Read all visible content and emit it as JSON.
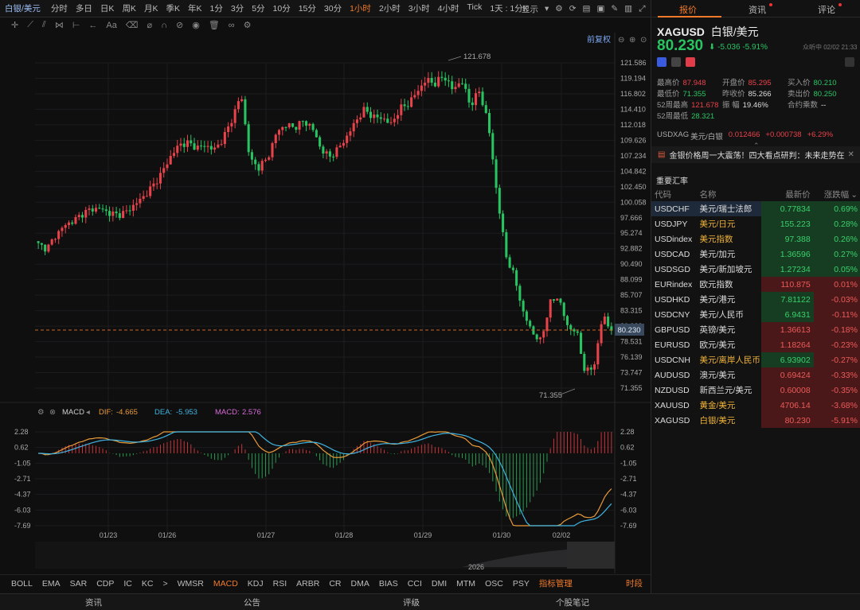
{
  "toolbar": {
    "symbol": "白银/美元",
    "timeframes": [
      "分时",
      "多日",
      "日K",
      "周K",
      "月K",
      "季K",
      "年K",
      "1分",
      "3分",
      "5分",
      "10分",
      "15分",
      "30分",
      "1小时",
      "2小时",
      "3小时",
      "4小时",
      "Tick",
      "1天 : 1分K"
    ],
    "active_timeframe": "1小时",
    "display_label": "显示"
  },
  "chart_overlay": {
    "adjust_label": "前复权",
    "high_marker": "121.678",
    "low_marker": "71.355",
    "current_price_tag": "80.230",
    "price_axis": [
      "121.586",
      "119.194",
      "116.802",
      "114.410",
      "112.018",
      "109.626",
      "107.234",
      "104.842",
      "102.450",
      "100.058",
      "97.666",
      "95.274",
      "92.882",
      "90.490",
      "88.099",
      "85.707",
      "83.315",
      "80.923",
      "78.531",
      "76.139",
      "73.747",
      "71.355"
    ],
    "macd_axis": [
      "2.28",
      "0.62",
      "-1.05",
      "-2.71",
      "-4.37",
      "-6.03",
      "-7.69"
    ],
    "dates": [
      "01/23",
      "01/26",
      "01/27",
      "01/28",
      "01/29",
      "01/30",
      "02/02"
    ],
    "year_label": "2026",
    "macd_legend": {
      "name": "MACD",
      "dif_label": "DIF:",
      "dif_value": "-4.665",
      "dea_label": "DEA:",
      "dea_value": "-5.953",
      "macd_label": "MACD:",
      "macd_value": "2.576"
    }
  },
  "indicators": [
    "BOLL",
    "EMA",
    "SAR",
    "CDP",
    "IC",
    "KC",
    ">",
    "WMSR",
    "MACD",
    "KDJ",
    "RSI",
    "ARBR",
    "CR",
    "DMA",
    "BIAS",
    "CCI",
    "DMI",
    "MTM",
    "OSC",
    "PSY",
    "指标管理",
    "时段"
  ],
  "active_indicator": "MACD",
  "bottom_tabs": [
    "资讯",
    "公告",
    "评级",
    "个股笔记"
  ],
  "panel": {
    "tabs": [
      "报价",
      "资讯",
      "评论"
    ],
    "code": "XAGUSD",
    "name": "白银/美元",
    "price": "80.230",
    "change": "-5.036",
    "change_pct": "-5.91%",
    "status": "众听中 02/02 21:33",
    "stats": [
      {
        "label": "最高价",
        "value": "87.948",
        "color": "red"
      },
      {
        "label": "开盘价",
        "value": "85.295",
        "color": "red"
      },
      {
        "label": "买入价",
        "value": "80.210",
        "color": "green"
      },
      {
        "label": "最低价",
        "value": "71.355",
        "color": "green"
      },
      {
        "label": "昨收价",
        "value": "85.266",
        "color": "plain"
      },
      {
        "label": "卖出价",
        "value": "80.250",
        "color": "green"
      },
      {
        "label": "52周最高",
        "value": "121.678",
        "color": "red"
      },
      {
        "label": "振 幅",
        "value": "19.46%",
        "color": "plain"
      },
      {
        "label": "合约乘数",
        "value": "--",
        "color": "plain"
      },
      {
        "label": "52周最低",
        "value": "28.321",
        "color": "green"
      }
    ],
    "related": {
      "code": "USDXAG",
      "name": "美元/白银",
      "price": "0.012466",
      "change": "+0.000738",
      "pct": "+6.29%"
    },
    "news": "金银价格周一大震荡！四大看点研判：未来走势在...",
    "section_title": "重要汇率",
    "table_headers": [
      "代码",
      "名称",
      "最新价",
      "涨跌幅"
    ],
    "rows": [
      {
        "code": "USDCHF",
        "name": "美元/瑞士法郎",
        "price": "0.77834",
        "pct": "0.69%",
        "dir": "up"
      },
      {
        "code": "USDJPY",
        "name": "美元/日元",
        "price": "155.223",
        "pct": "0.28%",
        "dir": "up"
      },
      {
        "code": "USDindex",
        "name": "美元指数",
        "price": "97.388",
        "pct": "0.26%",
        "dir": "up"
      },
      {
        "code": "USDCAD",
        "name": "美元/加元",
        "price": "1.36596",
        "pct": "0.27%",
        "dir": "up"
      },
      {
        "code": "USDSGD",
        "name": "美元/新加坡元",
        "price": "1.27234",
        "pct": "0.05%",
        "dir": "up"
      },
      {
        "code": "EURindex",
        "name": "欧元指数",
        "price": "110.875",
        "pct": "0.01%",
        "dir": "down"
      },
      {
        "code": "USDHKD",
        "name": "美元/港元",
        "price": "7.81122",
        "pct": "-0.03%",
        "dir": "up"
      },
      {
        "code": "USDCNY",
        "name": "美元/人民币",
        "price": "6.9431",
        "pct": "-0.11%",
        "dir": "up"
      },
      {
        "code": "GBPUSD",
        "name": "英镑/美元",
        "price": "1.36613",
        "pct": "-0.18%",
        "dir": "down"
      },
      {
        "code": "EURUSD",
        "name": "欧元/美元",
        "price": "1.18264",
        "pct": "-0.23%",
        "dir": "down"
      },
      {
        "code": "USDCNH",
        "name": "美元/离岸人民币",
        "price": "6.93902",
        "pct": "-0.27%",
        "dir": "up"
      },
      {
        "code": "AUDUSD",
        "name": "澳元/美元",
        "price": "0.69424",
        "pct": "-0.33%",
        "dir": "down"
      },
      {
        "code": "NZDUSD",
        "name": "新西兰元/美元",
        "price": "0.60008",
        "pct": "-0.35%",
        "dir": "down"
      },
      {
        "code": "XAUUSD",
        "name": "黄金/美元",
        "price": "4706.14",
        "pct": "-3.68%",
        "dir": "down"
      },
      {
        "code": "XAGUSD",
        "name": "白银/美元",
        "price": "80.230",
        "pct": "-5.91%",
        "dir": "down"
      }
    ]
  },
  "chart_data": {
    "type": "candlestick",
    "x_labels": [
      "01/23",
      "01/26",
      "01/27",
      "01/28",
      "01/29",
      "01/30",
      "02/02"
    ],
    "ylim": [
      71.355,
      121.586
    ],
    "close_path": [
      93.5,
      92.9,
      95.0,
      96.5,
      97.2,
      98.3,
      99.0,
      99.1,
      98.4,
      98.1,
      98.6,
      99.8,
      101.0,
      102.6,
      104.6,
      107.1,
      109.0,
      109.2,
      108.5,
      108.8,
      108.2,
      110.0,
      113.0,
      116.8,
      106.5,
      105.5,
      106.8,
      110.8,
      112.0,
      111.6,
      112.5,
      111.8,
      108.4,
      107.0,
      108.3,
      110.2,
      112.6,
      114.4,
      113.2,
      113.1,
      112.1,
      114.5,
      115.3,
      117.2,
      119.0,
      118.4,
      119.6,
      117.4,
      118.9,
      115.0,
      117.2,
      112.5,
      101.5,
      92.0,
      88.5,
      83.0,
      80.0,
      78.5,
      84.5,
      85.5,
      80.8,
      80.3,
      73.9,
      74.5,
      82.6,
      80.2
    ],
    "high": 121.678,
    "low": 71.355,
    "last": 80.23,
    "macd": {
      "dif": -4.665,
      "dea": -5.953,
      "macd": 2.576,
      "ylim": [
        -7.69,
        2.28
      ]
    }
  }
}
